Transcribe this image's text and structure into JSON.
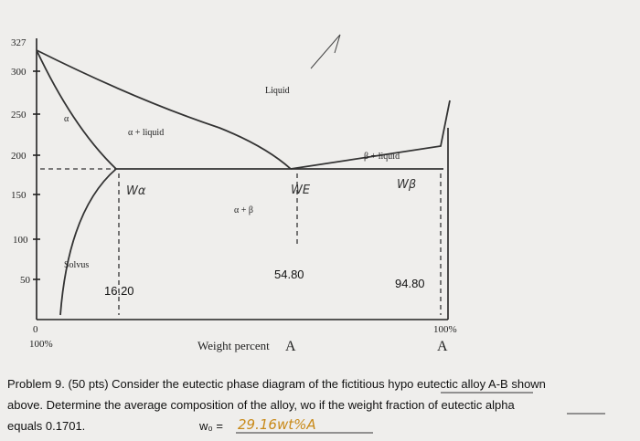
{
  "diagram": {
    "y_ticks": [
      "327",
      "300",
      "250",
      "200",
      "150",
      "100",
      "50",
      "0"
    ],
    "x_left_label": "100%",
    "x_right_label": "100%",
    "x_axis_label": "Weight percent",
    "x_axis_letter": "A",
    "right_letter": "A",
    "regions": {
      "liquid": "Liquid",
      "alpha": "α",
      "alpha_liquid": "α + liquid",
      "beta_liquid": "β + liquid",
      "alpha_beta": "α + β",
      "solvus": "Solvus"
    },
    "compositions": [
      "16.20",
      "54.80",
      "94.80"
    ],
    "handwritten": {
      "w_alpha": "Wα",
      "w_eutectic": "WE",
      "w_beta": "Wβ"
    }
  },
  "problem": {
    "lines": [
      "Problem 9. (50 pts) Consider the eutectic phase diagram of the fictitious hypo eutectic alloy A-B shown",
      "above. Determine the average composition of the alloy, wo if the weight fraction of eutectic alpha",
      "equals 0.1701."
    ],
    "answer_label": "w₀ =",
    "answer": "29.16wt%A"
  }
}
